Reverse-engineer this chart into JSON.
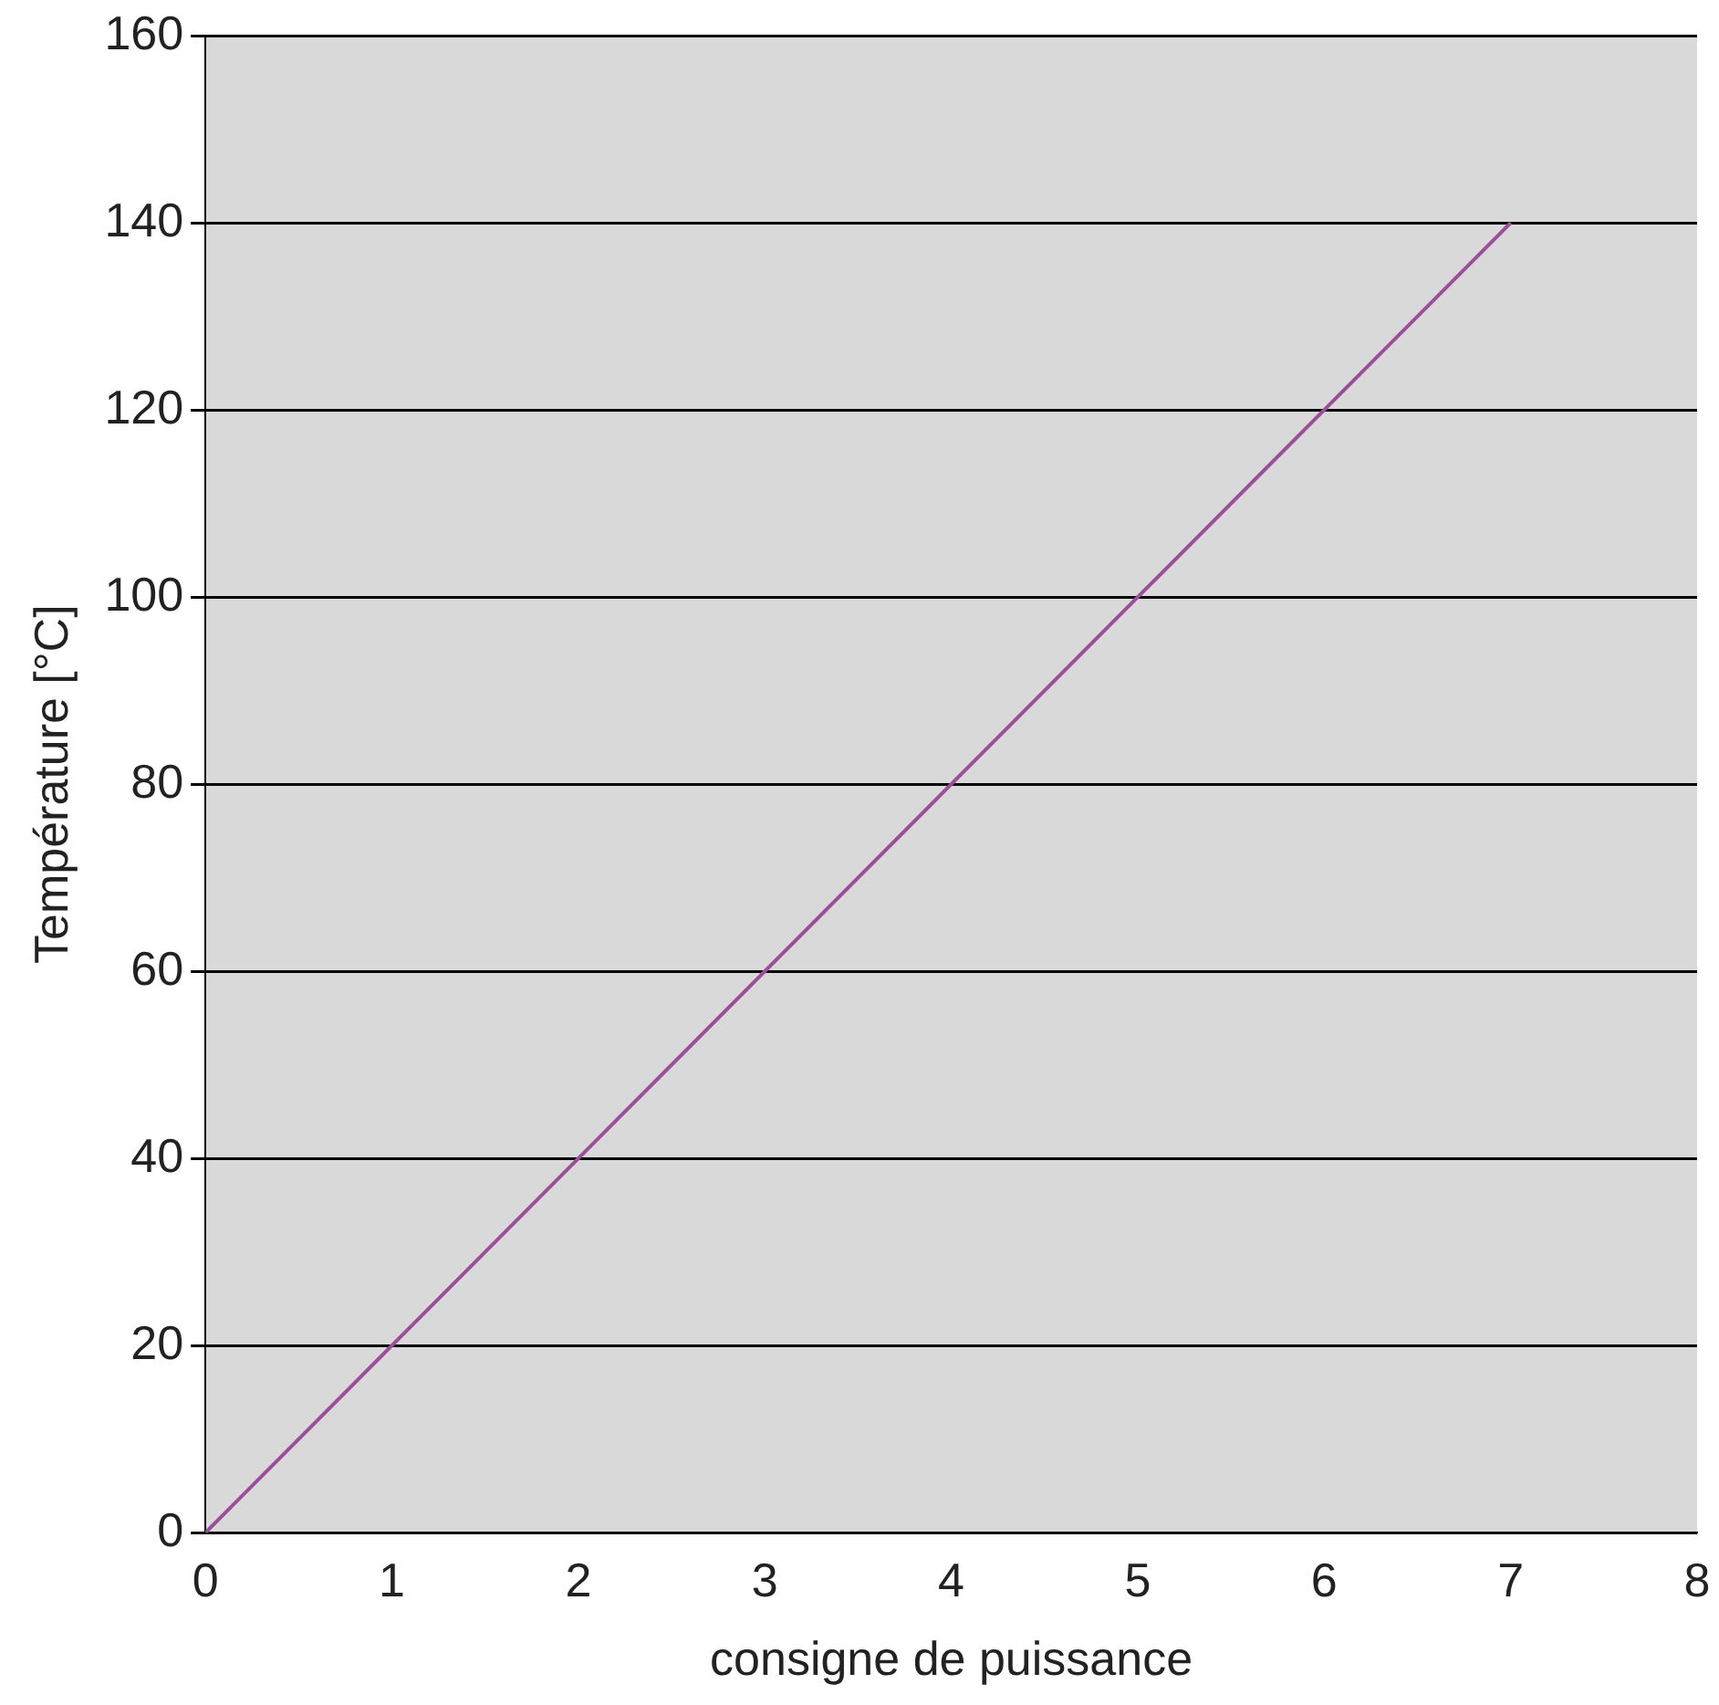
{
  "chart_data": {
    "type": "line",
    "xlabel": "consigne de puissance",
    "ylabel": "Température [°C]",
    "x": [
      0,
      1,
      2,
      3,
      4,
      5,
      6,
      7
    ],
    "series": [
      {
        "color": "#9b4f9b",
        "values": [
          0,
          20,
          40,
          60,
          80,
          100,
          120,
          140
        ]
      }
    ],
    "xlim": [
      0,
      8
    ],
    "xticks": [
      0,
      1,
      2,
      3,
      4,
      5,
      6,
      7,
      8
    ],
    "ylim": [
      0,
      160
    ],
    "yticks": [
      0,
      20,
      40,
      60,
      80,
      100,
      120,
      140,
      160
    ],
    "grid": "y",
    "legend": false,
    "marker": "none",
    "line_style": "solid"
  }
}
